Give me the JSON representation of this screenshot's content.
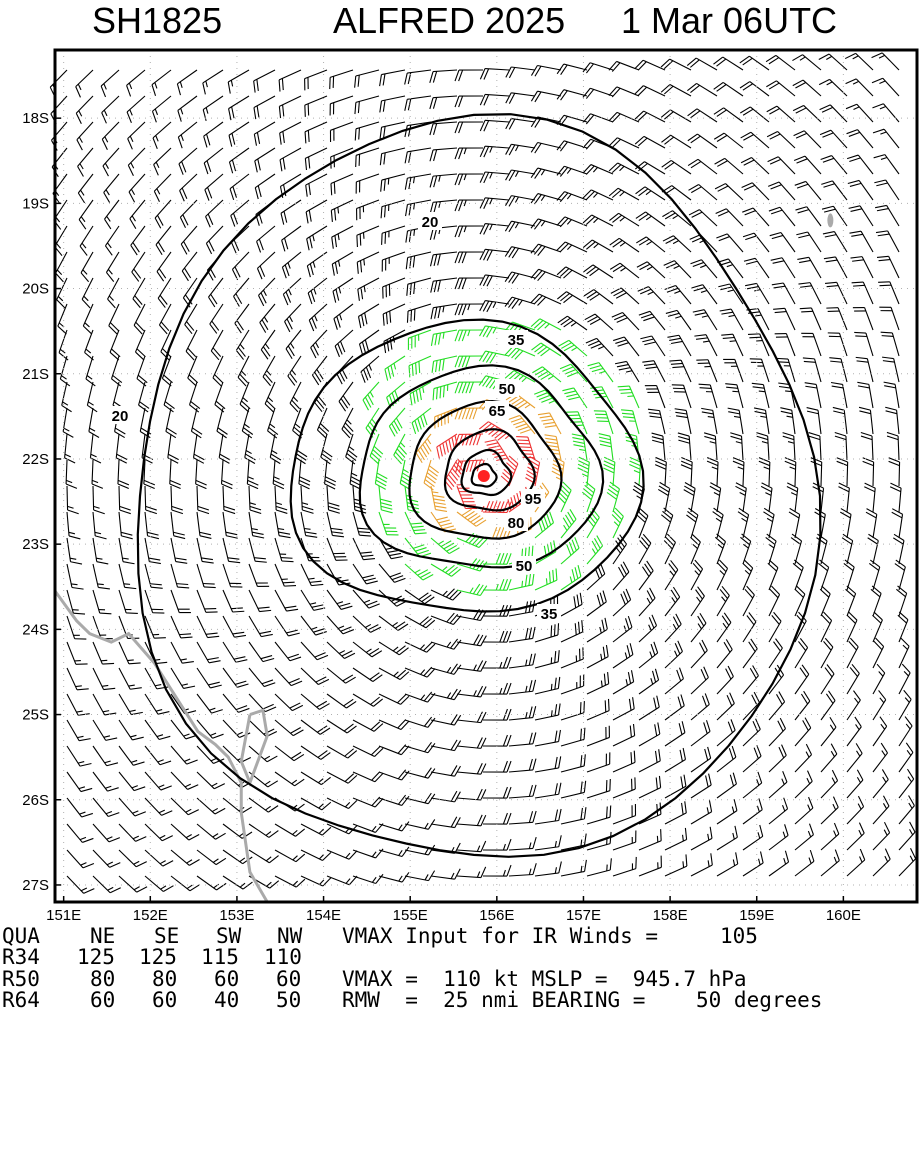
{
  "title": {
    "storm_id": "SH1825",
    "storm_name": "ALFRED 2025",
    "datetime": "1 Mar 06UTC"
  },
  "map": {
    "lon_labels": [
      "151E",
      "152E",
      "153E",
      "154E",
      "155E",
      "156E",
      "157E",
      "158E",
      "159E",
      "160E"
    ],
    "lat_labels": [
      "18S",
      "19S",
      "20S",
      "21S",
      "22S",
      "23S",
      "24S",
      "25S",
      "26S",
      "27S"
    ],
    "lon_range": [
      150.9,
      160.85
    ],
    "lat_range": [
      17.2,
      27.2
    ],
    "contour_labels": [
      "20",
      "20",
      "35",
      "35",
      "50",
      "50",
      "65",
      "80",
      "95"
    ],
    "center_lon": 155.85,
    "center_lat": 22.2,
    "colors": {
      "below34": "#000000",
      "r34": "#22dd22",
      "r50": "#e8a030",
      "r64": "#ee3333",
      "coast": "#aaaaaa",
      "center": "#ff2222"
    },
    "icon": "wind-barbs"
  },
  "info": {
    "header": {
      "label": "QUA",
      "q1": "NE",
      "q2": "SE",
      "q3": "SW",
      "q4": "NW",
      "note": "VMAX Input for IR Winds =",
      "note_value": "105"
    },
    "r34": {
      "label": "R34",
      "ne": "125",
      "se": "125",
      "sw": "115",
      "nw": "110"
    },
    "r50": {
      "label": "R50",
      "ne": "80",
      "se": "80",
      "sw": "60",
      "nw": "60",
      "note": "VMAX =  110 kt MSLP =  945.7 hPa"
    },
    "r64": {
      "label": "R64",
      "ne": "60",
      "se": "60",
      "sw": "40",
      "nw": "50",
      "note": "RMW  =  25 nmi BEARING =    50 degrees"
    }
  }
}
